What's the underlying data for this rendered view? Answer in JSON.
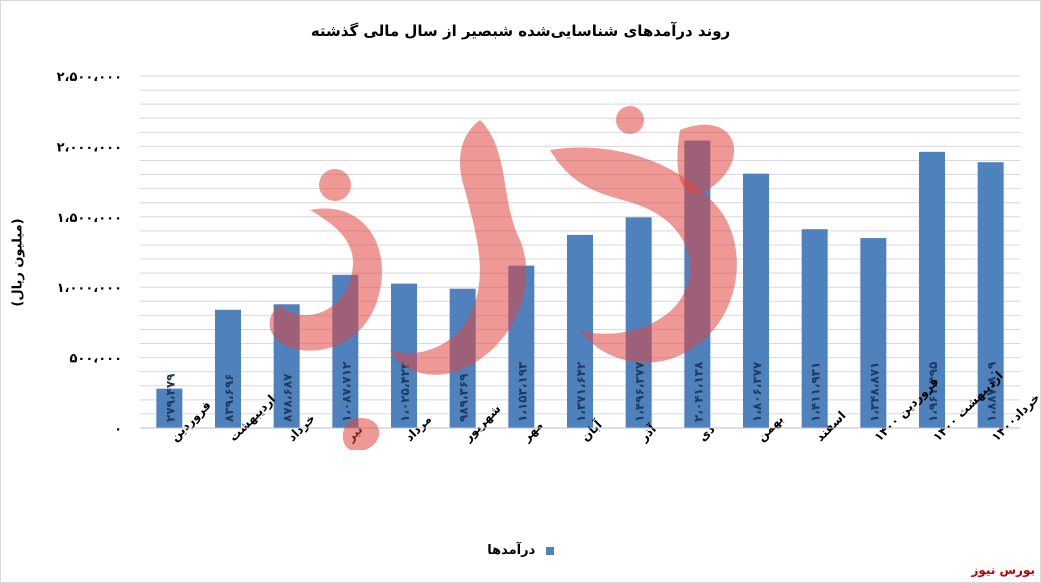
{
  "chart_data": {
    "type": "bar",
    "title": "روند درآمدهای شناسایی‌شده شبصیر از سال مالی گذشته",
    "xlabel": "",
    "ylabel": "(میلیون ریال)",
    "ylim": [
      0,
      2500000
    ],
    "yticks": [
      "۰",
      "۵۰۰،۰۰۰",
      "۱،۰۰۰،۰۰۰",
      "۱،۵۰۰،۰۰۰",
      "۲،۰۰۰،۰۰۰",
      "۲،۵۰۰،۰۰۰"
    ],
    "categories": [
      "فروردین",
      "اردیبهشت",
      "خرداد",
      "تیر",
      "مرداد",
      "شهریور",
      "مهر",
      "آبان",
      "آذر",
      "دی",
      "بهمن",
      "اسفند",
      "فروردین ۱۴۰۰",
      "اردیبهشت ۱۴۰۰",
      "خرداد۱۴۰۰"
    ],
    "series": [
      {
        "name": "درآمدها",
        "color": "#4f81bd",
        "values": [
          279479,
          839696,
          878687,
          1087712,
          1025423,
          989369,
          1153193,
          1371642,
          1496377,
          2041138,
          1806377,
          1411931,
          1348871,
          1961495,
          1887809
        ],
        "labels": [
          "۲۷۹،۴۷۹",
          "۸۳۹،۶۹۶",
          "۸۷۸،۶۸۷",
          "۱،۰۸۷،۷۱۲",
          "۱،۰۲۵،۴۲۳",
          "۹۸۹،۳۶۹",
          "۱،۱۵۳،۱۹۳",
          "۱،۳۷۱،۶۴۲",
          "۱،۴۹۶،۳۷۷",
          "۲،۰۴۱،۱۳۸",
          "۱،۸۰۶،۳۷۷",
          "۱،۴۱۱،۹۳۱",
          "۱،۳۴۸،۸۷۱",
          "۱،۹۶۱،۴۹۵",
          "۱،۸۸۷،۸۰۹"
        ]
      }
    ],
    "grid": true,
    "legend_position": "bottom"
  },
  "watermark_text": "بورس نیوز",
  "brand": "بورس نیوز",
  "colors": {
    "bar": "#4f81bd",
    "grid": "#d9d9d9",
    "watermark": "#e0463f",
    "brand": "#c00000"
  }
}
